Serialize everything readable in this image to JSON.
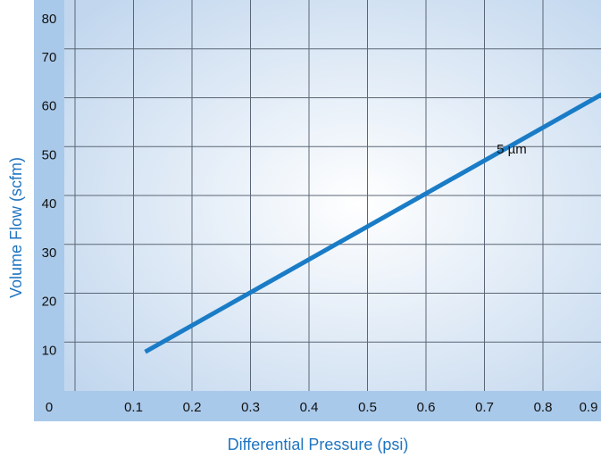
{
  "chart_data": {
    "type": "line",
    "xlabel": "Differential Pressure (psi)",
    "ylabel": "Volume Flow (scfm)",
    "xlim": [
      0,
      0.92
    ],
    "ylim": [
      0,
      80
    ],
    "x_ticks": [
      "0",
      "0.1",
      "0.2",
      "0.3",
      "0.4",
      "0.5",
      "0.6",
      "0.7",
      "0.8",
      "0.9"
    ],
    "y_ticks": [
      "0",
      "10",
      "20",
      "30",
      "40",
      "50",
      "60",
      "70",
      "80"
    ],
    "grid": true,
    "series": [
      {
        "name": "5 µm",
        "x": [
          0.12,
          0.92
        ],
        "y": [
          8,
          62
        ]
      }
    ],
    "annotations": [
      {
        "text": "5 µm",
        "x": 0.73,
        "y": 49.5
      }
    ],
    "colors": {
      "line": "#1a7cc6",
      "axis_band": "#a9c9ea",
      "plot_center": "#ffffff",
      "plot_edge": "#c2d7ee",
      "grid": "#5a6675",
      "axis_title": "#1f74c0"
    }
  }
}
